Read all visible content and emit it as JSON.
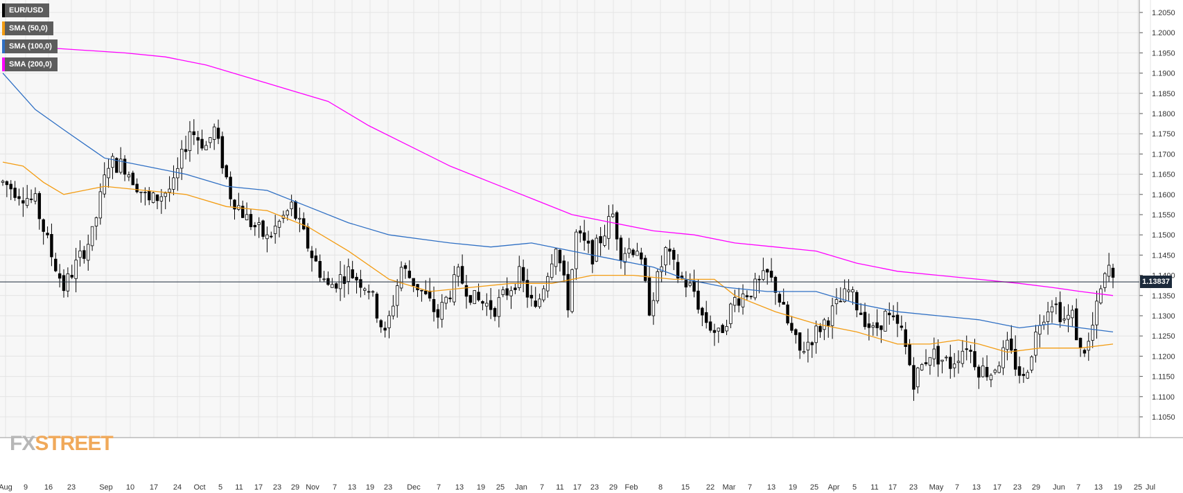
{
  "legend": [
    {
      "label": "EUR/USD",
      "color": "#000000"
    },
    {
      "label": "SMA (50,0)",
      "color": "#f39c12"
    },
    {
      "label": "SMA (100,0)",
      "color": "#2e6fc4"
    },
    {
      "label": "SMA (200,0)",
      "color": "#ff00ff"
    }
  ],
  "price_tag": "1.13837",
  "logo": {
    "fx": "FX",
    "street": "STREET"
  },
  "chart_data": {
    "type": "candlestick",
    "symbol": "EUR/USD",
    "ylim": [
      1.1,
      1.205
    ],
    "y_ticks": [
      "1.2050",
      "1.2000",
      "1.1950",
      "1.1900",
      "1.1850",
      "1.1800",
      "1.1750",
      "1.1700",
      "1.1650",
      "1.1600",
      "1.1550",
      "1.1500",
      "1.1450",
      "1.1400",
      "1.1350",
      "1.1300",
      "1.1250",
      "1.1200",
      "1.1150",
      "1.1100",
      "1.1050"
    ],
    "x_ticks": [
      "Aug",
      "9",
      "16",
      "23",
      "Sep",
      "10",
      "17",
      "24",
      "Oct",
      "5",
      "11",
      "17",
      "23",
      "29",
      "Nov",
      "7",
      "13",
      "19",
      "23",
      "Dec",
      "7",
      "13",
      "19",
      "25",
      "Jan",
      "7",
      "11",
      "17",
      "23",
      "29",
      "Feb",
      "8",
      "15",
      "22",
      "Mar",
      "7",
      "13",
      "19",
      "25",
      "Apr",
      "5",
      "11",
      "17",
      "23",
      "May",
      "7",
      "13",
      "17",
      "23",
      "29",
      "Jun",
      "7",
      "13",
      "19",
      "25",
      "Jul"
    ],
    "last_price": 1.13837,
    "close_path": [
      [
        0,
        1.163
      ],
      [
        8,
        1.158
      ],
      [
        12,
        1.145
      ],
      [
        15,
        1.137
      ],
      [
        22,
        1.15
      ],
      [
        26,
        1.168
      ],
      [
        30,
        1.167
      ],
      [
        36,
        1.158
      ],
      [
        42,
        1.162
      ],
      [
        46,
        1.176
      ],
      [
        50,
        1.172
      ],
      [
        52,
        1.176
      ],
      [
        56,
        1.16
      ],
      [
        60,
        1.154
      ],
      [
        65,
        1.149
      ],
      [
        71,
        1.157
      ],
      [
        76,
        1.145
      ],
      [
        80,
        1.137
      ],
      [
        85,
        1.141
      ],
      [
        90,
        1.137
      ],
      [
        94,
        1.125
      ],
      [
        98,
        1.142
      ],
      [
        103,
        1.136
      ],
      [
        107,
        1.13
      ],
      [
        112,
        1.14
      ],
      [
        116,
        1.134
      ],
      [
        121,
        1.132
      ],
      [
        127,
        1.14
      ],
      [
        131,
        1.131
      ],
      [
        136,
        1.148
      ],
      [
        139,
        1.133
      ],
      [
        141,
        1.15
      ],
      [
        145,
        1.145
      ],
      [
        150,
        1.155
      ],
      [
        152,
        1.146
      ],
      [
        156,
        1.147
      ],
      [
        159,
        1.132
      ],
      [
        163,
        1.146
      ],
      [
        166,
        1.14
      ],
      [
        170,
        1.136
      ],
      [
        172,
        1.13
      ],
      [
        176,
        1.125
      ],
      [
        180,
        1.134
      ],
      [
        185,
        1.137
      ],
      [
        188,
        1.14
      ],
      [
        190,
        1.137
      ],
      [
        193,
        1.128
      ],
      [
        196,
        1.121
      ],
      [
        200,
        1.126
      ],
      [
        204,
        1.131
      ],
      [
        208,
        1.136
      ],
      [
        211,
        1.131
      ],
      [
        214,
        1.126
      ],
      [
        217,
        1.13
      ],
      [
        221,
        1.126
      ],
      [
        224,
        1.114
      ],
      [
        228,
        1.121
      ],
      [
        233,
        1.118
      ],
      [
        237,
        1.123
      ],
      [
        240,
        1.117
      ],
      [
        243,
        1.116
      ],
      [
        247,
        1.122
      ],
      [
        251,
        1.114
      ],
      [
        255,
        1.129
      ],
      [
        258,
        1.134
      ],
      [
        261,
        1.129
      ],
      [
        263,
        1.13
      ],
      [
        265,
        1.121
      ],
      [
        267,
        1.123
      ],
      [
        270,
        1.136
      ],
      [
        272,
        1.142
      ],
      [
        273,
        1.138
      ]
    ],
    "x_count": 274,
    "series": [
      {
        "name": "SMA (50,0)",
        "color": "#f39c12",
        "points": [
          [
            0,
            1.168
          ],
          [
            5,
            1.167
          ],
          [
            10,
            1.163
          ],
          [
            15,
            1.16
          ],
          [
            25,
            1.162
          ],
          [
            35,
            1.161
          ],
          [
            45,
            1.16
          ],
          [
            55,
            1.157
          ],
          [
            65,
            1.156
          ],
          [
            75,
            1.152
          ],
          [
            85,
            1.146
          ],
          [
            95,
            1.139
          ],
          [
            105,
            1.136
          ],
          [
            115,
            1.137
          ],
          [
            125,
            1.138
          ],
          [
            135,
            1.138
          ],
          [
            145,
            1.14
          ],
          [
            155,
            1.14
          ],
          [
            165,
            1.139
          ],
          [
            175,
            1.139
          ],
          [
            180,
            1.135
          ],
          [
            190,
            1.131
          ],
          [
            200,
            1.128
          ],
          [
            210,
            1.126
          ],
          [
            220,
            1.123
          ],
          [
            228,
            1.123
          ],
          [
            235,
            1.124
          ],
          [
            240,
            1.123
          ],
          [
            247,
            1.121
          ],
          [
            255,
            1.122
          ],
          [
            265,
            1.122
          ],
          [
            273,
            1.123
          ]
        ]
      },
      {
        "name": "SMA (100,0)",
        "color": "#2e6fc4",
        "points": [
          [
            0,
            1.19
          ],
          [
            8,
            1.181
          ],
          [
            15,
            1.176
          ],
          [
            25,
            1.169
          ],
          [
            35,
            1.167
          ],
          [
            45,
            1.165
          ],
          [
            55,
            1.162
          ],
          [
            65,
            1.161
          ],
          [
            75,
            1.157
          ],
          [
            85,
            1.153
          ],
          [
            95,
            1.15
          ],
          [
            110,
            1.148
          ],
          [
            120,
            1.147
          ],
          [
            130,
            1.148
          ],
          [
            140,
            1.146
          ],
          [
            150,
            1.144
          ],
          [
            160,
            1.142
          ],
          [
            168,
            1.139
          ],
          [
            178,
            1.137
          ],
          [
            188,
            1.136
          ],
          [
            200,
            1.136
          ],
          [
            210,
            1.133
          ],
          [
            220,
            1.131
          ],
          [
            230,
            1.13
          ],
          [
            240,
            1.129
          ],
          [
            250,
            1.127
          ],
          [
            258,
            1.128
          ],
          [
            265,
            1.127
          ],
          [
            273,
            1.126
          ]
        ]
      },
      {
        "name": "SMA (200,0)",
        "color": "#ff00ff",
        "points": [
          [
            0,
            1.197
          ],
          [
            15,
            1.196
          ],
          [
            30,
            1.195
          ],
          [
            40,
            1.194
          ],
          [
            50,
            1.192
          ],
          [
            60,
            1.189
          ],
          [
            70,
            1.186
          ],
          [
            80,
            1.183
          ],
          [
            90,
            1.177
          ],
          [
            100,
            1.172
          ],
          [
            110,
            1.167
          ],
          [
            120,
            1.163
          ],
          [
            130,
            1.159
          ],
          [
            140,
            1.155
          ],
          [
            150,
            1.153
          ],
          [
            160,
            1.151
          ],
          [
            170,
            1.15
          ],
          [
            180,
            1.148
          ],
          [
            190,
            1.147
          ],
          [
            200,
            1.146
          ],
          [
            210,
            1.143
          ],
          [
            220,
            1.141
          ],
          [
            230,
            1.14
          ],
          [
            240,
            1.139
          ],
          [
            250,
            1.138
          ],
          [
            258,
            1.137
          ],
          [
            265,
            1.136
          ],
          [
            273,
            1.135
          ]
        ]
      }
    ]
  }
}
